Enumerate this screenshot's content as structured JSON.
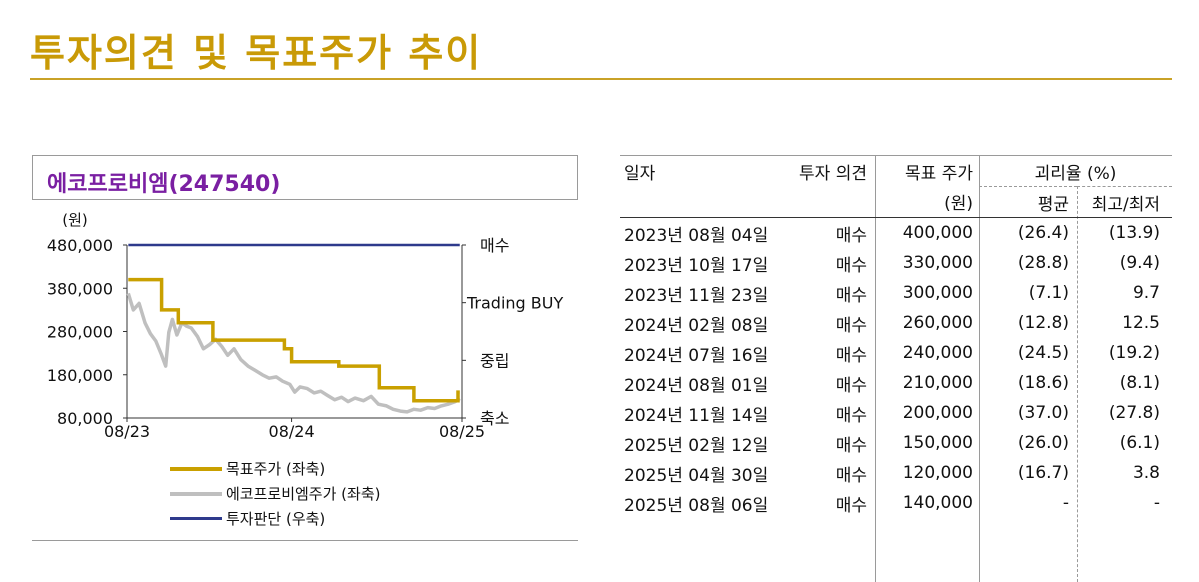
{
  "page_title": "투자의견 및 목표주가 추이",
  "chart_title": "에코프로비엠(247540)",
  "colors": {
    "accent": "#c99a06",
    "target": "#c9a000",
    "price": "#bfbfbf",
    "opinion": "#2e3a8c",
    "company": "#7a1fa2"
  },
  "chart_data": {
    "type": "line",
    "title": "에코프로비엠(247540)",
    "ylabel_left": "(원)",
    "ylim_left": [
      80000,
      480000
    ],
    "yticks_left": [
      "480,000",
      "380,000",
      "280,000",
      "180,000",
      "80,000"
    ],
    "xticks": [
      "08/23",
      "08/24",
      "08/25"
    ],
    "right_axis_labels": [
      "매수",
      "Trading BUY",
      "중립",
      "축소"
    ],
    "legend": [
      "목표주가 (좌축)",
      "에코프로비엠주가 (좌축)",
      "투자판단 (우축)"
    ],
    "series": [
      {
        "name": "목표주가 (좌축)",
        "points": [
          [
            "2023-08-04",
            400000
          ],
          [
            "2023-10-17",
            330000
          ],
          [
            "2023-11-23",
            300000
          ],
          [
            "2024-02-08",
            260000
          ],
          [
            "2024-07-16",
            240000
          ],
          [
            "2024-08-01",
            210000
          ],
          [
            "2024-11-14",
            200000
          ],
          [
            "2025-02-12",
            150000
          ],
          [
            "2025-04-30",
            120000
          ],
          [
            "2025-08-06",
            140000
          ]
        ]
      },
      {
        "name": "에코프로비엠주가 (좌축)",
        "points": [
          [
            "2023-08-04",
            368000
          ],
          [
            "2023-08-15",
            330000
          ],
          [
            "2023-08-28",
            345000
          ],
          [
            "2023-09-10",
            300000
          ],
          [
            "2023-09-22",
            275000
          ],
          [
            "2023-10-04",
            258000
          ],
          [
            "2023-10-16",
            228000
          ],
          [
            "2023-10-26",
            200000
          ],
          [
            "2023-11-02",
            278000
          ],
          [
            "2023-11-10",
            308000
          ],
          [
            "2023-11-20",
            272000
          ],
          [
            "2023-12-01",
            300000
          ],
          [
            "2023-12-12",
            292000
          ],
          [
            "2023-12-22",
            288000
          ],
          [
            "2024-01-05",
            268000
          ],
          [
            "2024-01-18",
            240000
          ],
          [
            "2024-02-01",
            250000
          ],
          [
            "2024-02-14",
            262000
          ],
          [
            "2024-02-28",
            245000
          ],
          [
            "2024-03-12",
            225000
          ],
          [
            "2024-03-26",
            240000
          ],
          [
            "2024-04-10",
            215000
          ],
          [
            "2024-04-26",
            200000
          ],
          [
            "2024-05-12",
            190000
          ],
          [
            "2024-05-28",
            180000
          ],
          [
            "2024-06-12",
            172000
          ],
          [
            "2024-06-28",
            175000
          ],
          [
            "2024-07-12",
            165000
          ],
          [
            "2024-07-28",
            158000
          ],
          [
            "2024-08-08",
            140000
          ],
          [
            "2024-08-20",
            152000
          ],
          [
            "2024-09-05",
            148000
          ],
          [
            "2024-09-20",
            138000
          ],
          [
            "2024-10-05",
            142000
          ],
          [
            "2024-10-20",
            132000
          ],
          [
            "2024-11-05",
            122000
          ],
          [
            "2024-11-20",
            128000
          ],
          [
            "2024-12-05",
            118000
          ],
          [
            "2024-12-20",
            126000
          ],
          [
            "2025-01-08",
            120000
          ],
          [
            "2025-01-25",
            130000
          ],
          [
            "2025-02-10",
            112000
          ],
          [
            "2025-02-28",
            108000
          ],
          [
            "2025-03-15",
            100000
          ],
          [
            "2025-03-31",
            96000
          ],
          [
            "2025-04-15",
            94000
          ],
          [
            "2025-04-30",
            100000
          ],
          [
            "2025-05-15",
            98000
          ],
          [
            "2025-05-31",
            104000
          ],
          [
            "2025-06-15",
            102000
          ],
          [
            "2025-06-30",
            108000
          ],
          [
            "2025-07-15",
            112000
          ],
          [
            "2025-07-31",
            118000
          ],
          [
            "2025-08-10",
            125000
          ]
        ]
      },
      {
        "name": "투자판단 (우축)",
        "points": [
          [
            "2023-08-04",
            "매수"
          ],
          [
            "2025-08-10",
            "매수"
          ]
        ]
      }
    ]
  },
  "table": {
    "headers": {
      "date": "일자",
      "opinion": "투자 의견",
      "target": "목표 주가",
      "target_unit": "(원)",
      "gap": "괴리율 (%)",
      "avg": "평균",
      "hilo": "최고/최저"
    },
    "rows": [
      {
        "date": "2023년 08월 04일",
        "opinion": "매수",
        "target": "400,000",
        "avg": "(26.4)",
        "hilo": "(13.9)"
      },
      {
        "date": "2023년 10월 17일",
        "opinion": "매수",
        "target": "330,000",
        "avg": "(28.8)",
        "hilo": "(9.4)"
      },
      {
        "date": "2023년 11월 23일",
        "opinion": "매수",
        "target": "300,000",
        "avg": "(7.1)",
        "hilo": "9.7"
      },
      {
        "date": "2024년 02월 08일",
        "opinion": "매수",
        "target": "260,000",
        "avg": "(12.8)",
        "hilo": "12.5"
      },
      {
        "date": "2024년 07월 16일",
        "opinion": "매수",
        "target": "240,000",
        "avg": "(24.5)",
        "hilo": "(19.2)"
      },
      {
        "date": "2024년 08월 01일",
        "opinion": "매수",
        "target": "210,000",
        "avg": "(18.6)",
        "hilo": "(8.1)"
      },
      {
        "date": "2024년 11월 14일",
        "opinion": "매수",
        "target": "200,000",
        "avg": "(37.0)",
        "hilo": "(27.8)"
      },
      {
        "date": "2025년 02월 12일",
        "opinion": "매수",
        "target": "150,000",
        "avg": "(26.0)",
        "hilo": "(6.1)"
      },
      {
        "date": "2025년 04월 30일",
        "opinion": "매수",
        "target": "120,000",
        "avg": "(16.7)",
        "hilo": "3.8"
      },
      {
        "date": "2025년 08월 06일",
        "opinion": "매수",
        "target": "140,000",
        "avg": "-",
        "hilo": "-"
      }
    ]
  }
}
